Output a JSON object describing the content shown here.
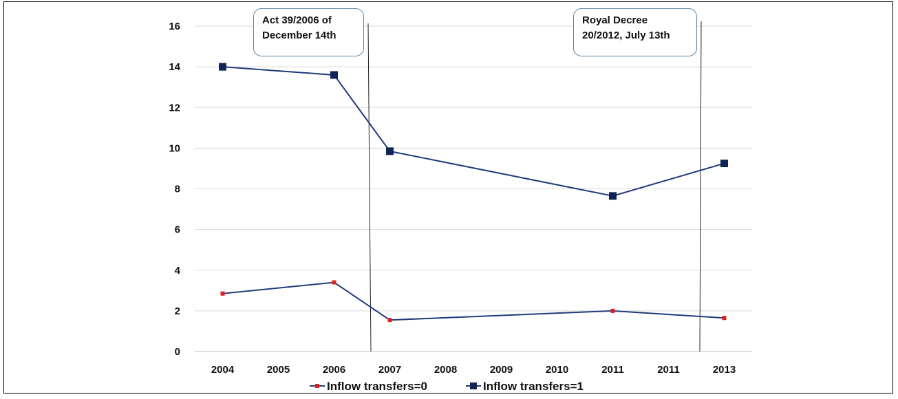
{
  "chart_data": {
    "type": "line",
    "categories": [
      "2004",
      "2005",
      "2006",
      "2007",
      "2008",
      "2009",
      "2010",
      "2011",
      "2011",
      "2013"
    ],
    "ylim": [
      0,
      16
    ],
    "yticks": [
      0,
      2,
      4,
      6,
      8,
      10,
      12,
      14,
      16
    ],
    "grid": true,
    "legend_position": "bottom",
    "series": [
      {
        "name": "Inflow transfers=0",
        "color": "#1f3a7a",
        "marker_color": "#e02020",
        "marker": "small-square",
        "points": [
          {
            "category_index": 0,
            "value": 2.85
          },
          {
            "category_index": 2,
            "value": 3.4
          },
          {
            "category_index": 3,
            "value": 1.55
          },
          {
            "category_index": 7,
            "value": 2.0
          },
          {
            "category_index": 9,
            "value": 1.65
          }
        ]
      },
      {
        "name": "Inflow transfers=1",
        "color": "#1f3a7a",
        "marker_color": "#0f2555",
        "marker": "square",
        "points": [
          {
            "category_index": 0,
            "value": 14.0
          },
          {
            "category_index": 2,
            "value": 13.6
          },
          {
            "category_index": 3,
            "value": 9.85
          },
          {
            "category_index": 7,
            "value": 7.65
          },
          {
            "category_index": 9,
            "value": 9.25
          }
        ]
      }
    ],
    "annotations": [
      {
        "lines": [
          "Act 39/2006 of",
          "December 14th"
        ],
        "between": [
          "2006",
          "2007"
        ]
      },
      {
        "lines": [
          "Royal Decree",
          "20/2012, July 13th"
        ],
        "between": [
          "2011",
          "2013"
        ]
      }
    ]
  }
}
